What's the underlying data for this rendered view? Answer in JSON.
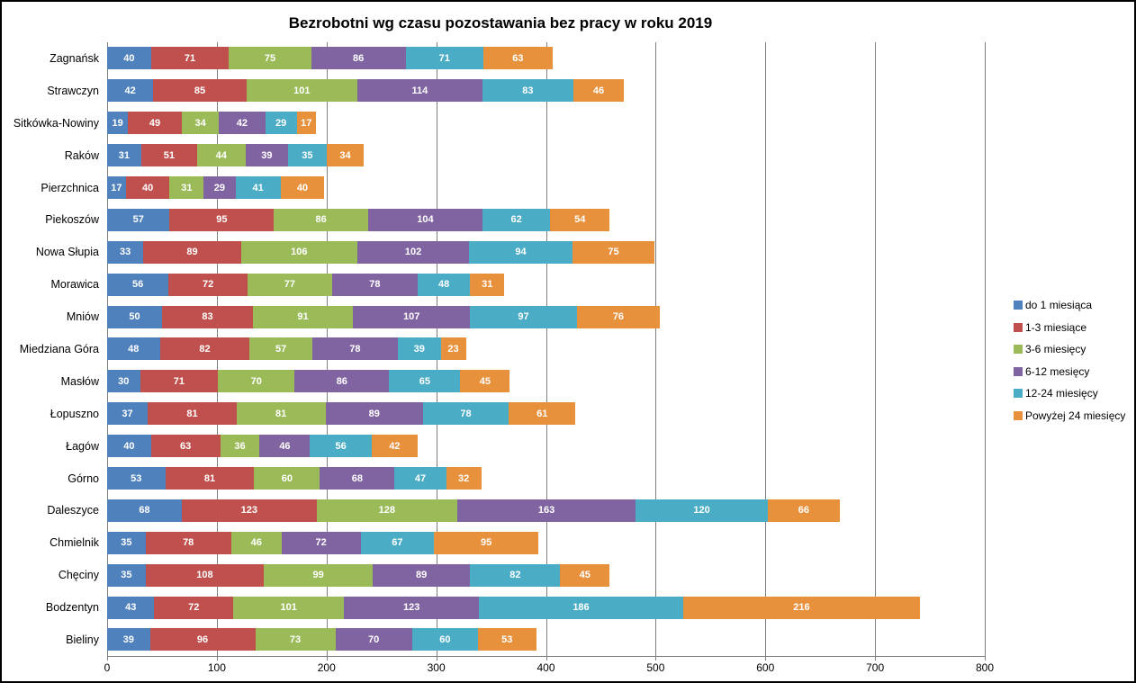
{
  "title": "Bezrobotni wg czasu pozostawania bez pracy w roku 2019",
  "chart_data": {
    "type": "bar",
    "orientation": "horizontal",
    "stacked": true,
    "title": "Bezrobotni wg czasu pozostawania bez pracy w roku 2019",
    "xlabel": "",
    "ylabel": "",
    "xlim": [
      0,
      800
    ],
    "x_ticks": [
      0,
      100,
      200,
      300,
      400,
      500,
      600,
      700,
      800
    ],
    "grid": "vertical",
    "legend_position": "right",
    "data_labels": "inside-center-white-bold",
    "categories": [
      "Zagnańsk",
      "Strawczyn",
      "Sitkówka-Nowiny",
      "Raków",
      "Pierzchnica",
      "Piekoszów",
      "Nowa Słupia",
      "Morawica",
      "Mniów",
      "Miedziana Góra",
      "Masłów",
      "Łopuszno",
      "Łagów",
      "Górno",
      "Daleszyce",
      "Chmielnik",
      "Chęciny",
      "Bodzentyn",
      "Bieliny"
    ],
    "series": [
      {
        "name": "do 1 miesiąca",
        "color": "#4F81BD",
        "values": [
          40,
          42,
          19,
          31,
          17,
          57,
          33,
          56,
          50,
          48,
          30,
          37,
          40,
          53,
          68,
          35,
          35,
          43,
          39
        ]
      },
      {
        "name": "1-3 miesiące",
        "color": "#C0504D",
        "values": [
          71,
          85,
          49,
          51,
          40,
          95,
          89,
          72,
          83,
          82,
          71,
          81,
          63,
          81,
          123,
          78,
          108,
          72,
          96
        ]
      },
      {
        "name": "3-6 miesięcy",
        "color": "#9BBB59",
        "values": [
          75,
          101,
          34,
          44,
          31,
          86,
          106,
          77,
          91,
          57,
          70,
          81,
          36,
          60,
          128,
          46,
          99,
          101,
          73
        ]
      },
      {
        "name": "6-12 mesięcy",
        "color": "#8064A2",
        "values": [
          86,
          114,
          42,
          39,
          29,
          104,
          102,
          78,
          107,
          78,
          86,
          89,
          46,
          68,
          163,
          72,
          89,
          123,
          70
        ]
      },
      {
        "name": "12-24 miesięcy",
        "color": "#4BACC6",
        "values": [
          71,
          83,
          29,
          35,
          41,
          62,
          94,
          48,
          97,
          39,
          65,
          78,
          56,
          47,
          120,
          67,
          82,
          186,
          60
        ]
      },
      {
        "name": "Powyżej 24 miesięcy",
        "color": "#E8913D",
        "values": [
          63,
          46,
          17,
          34,
          40,
          54,
          75,
          31,
          76,
          23,
          45,
          61,
          42,
          32,
          66,
          95,
          45,
          216,
          53
        ]
      }
    ],
    "colors": {
      "gridline": "#808080",
      "axis": "#808080",
      "title_text": "#000000",
      "data_label_text": "#ffffff"
    }
  }
}
